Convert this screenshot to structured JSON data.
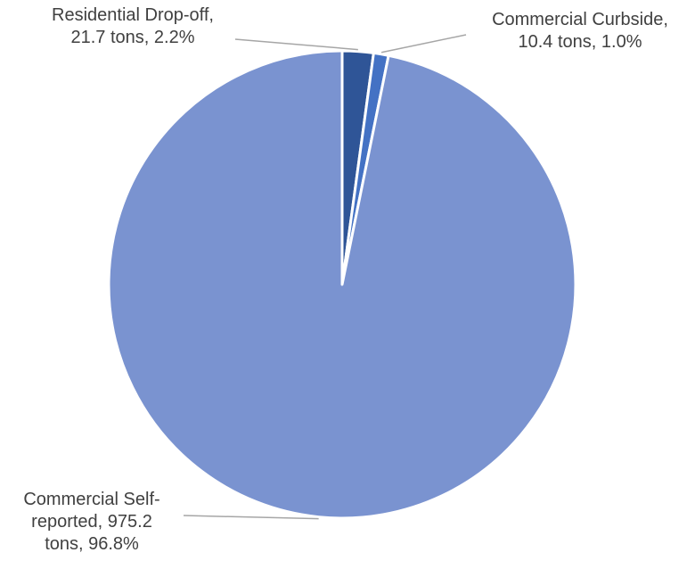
{
  "chart_data": {
    "type": "pie",
    "title": "",
    "slices": [
      {
        "label_lines": [
          "Residential Drop-off,",
          "21.7 tons, 2.2%"
        ],
        "category": "Residential Drop-off",
        "value": 21.7,
        "unit": "tons",
        "percent": "2.2%",
        "color": "#2f5597"
      },
      {
        "label_lines": [
          "Commercial Curbside,",
          "10.4 tons, 1.0%"
        ],
        "category": "Commercial Curbside",
        "value": 10.4,
        "unit": "tons",
        "percent": "1.0%",
        "color": "#4472c4"
      },
      {
        "label_lines": [
          "Commercial Self-",
          "reported, 975.2",
          "tons, 96.8%"
        ],
        "category": "Commercial Self-reported",
        "value": 975.2,
        "unit": "tons",
        "percent": "96.8%",
        "color": "#7a93d0"
      }
    ],
    "start_angle_deg": 0,
    "direction": "clockwise",
    "legend": "none",
    "label_position": "outside with leader lines",
    "slice_border_color": "#ffffff",
    "leader_line_color": "#a6a6a6"
  }
}
